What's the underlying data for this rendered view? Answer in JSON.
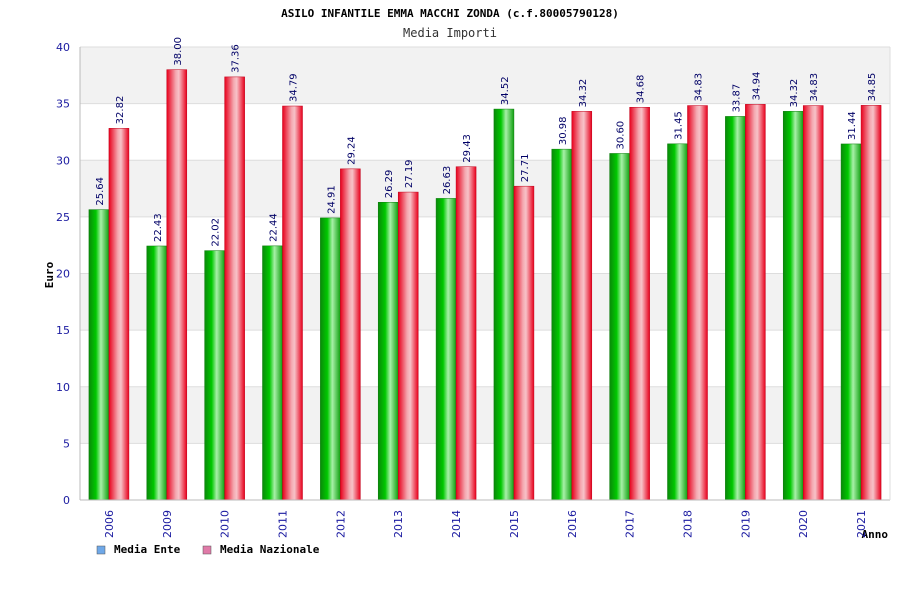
{
  "chart_data": {
    "type": "bar",
    "title": "ASILO INFANTILE EMMA MACCHI ZONDA (c.f.80005790128)",
    "subtitle": "Media Importi",
    "xlabel": "Anno",
    "ylabel": "Euro",
    "ylim": [
      0,
      40
    ],
    "yticks": [
      0,
      5,
      10,
      15,
      20,
      25,
      30,
      35,
      40
    ],
    "grid": true,
    "legend_position": "bottom-left",
    "categories": [
      "2006",
      "2009",
      "2010",
      "2011",
      "2012",
      "2013",
      "2014",
      "2015",
      "2016",
      "2017",
      "2018",
      "2019",
      "2020",
      "2021"
    ],
    "series": [
      {
        "name": "Media Ente",
        "color": "#00b400",
        "legend_color": "#6fa8e8",
        "values": [
          25.64,
          22.43,
          22.02,
          22.44,
          24.91,
          26.29,
          26.63,
          34.52,
          30.98,
          30.6,
          31.45,
          33.87,
          34.32,
          31.44
        ],
        "labels": [
          "25.64",
          "22.43",
          "22.02",
          "22.44",
          "24.91",
          "26.29",
          "26.63",
          "34.52",
          "30.98",
          "30.60",
          "31.45",
          "33.87",
          "34.32",
          "31.44"
        ]
      },
      {
        "name": "Media Nazionale",
        "color": "#e8001c",
        "legend_color": "#e07aa8",
        "values": [
          32.82,
          38.0,
          37.36,
          34.79,
          29.24,
          27.19,
          29.43,
          27.71,
          34.32,
          34.68,
          34.83,
          34.94,
          34.83,
          34.85
        ],
        "labels": [
          "32.82",
          "38.00",
          "37.36",
          "34.79",
          "29.24",
          "27.19",
          "29.43",
          "27.71",
          "34.32",
          "34.68",
          "34.83",
          "34.94",
          "34.83",
          "34.85"
        ]
      }
    ]
  }
}
